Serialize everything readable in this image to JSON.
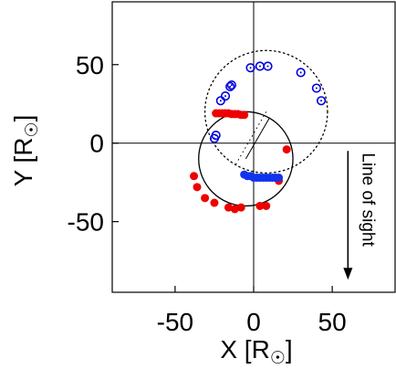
{
  "chart_data": {
    "type": "scatter",
    "title": "",
    "xlabel": "X [R",
    "ylabel": "Y [R",
    "label_suffix": "]",
    "xlim": [
      -90,
      90
    ],
    "ylim": [
      -95,
      90
    ],
    "xticks": [
      -50,
      0,
      50
    ],
    "xtick_labels": [
      "-50",
      "0",
      "50"
    ],
    "yticks": [
      -50,
      0,
      50
    ],
    "ytick_labels": [
      "-50",
      "0",
      "50"
    ],
    "grid": false,
    "zero_lines": true,
    "annotation": {
      "text": "Line of sight",
      "arrow_x": 60,
      "arrow_y_from": -5,
      "arrow_y_to": -87
    },
    "orbits": [
      {
        "name": "",
        "style": "solid",
        "color": "#000000",
        "center": [
          -5,
          -10
        ],
        "radius": 30
      },
      {
        "name": "",
        "style": "dotted",
        "color": "#000000",
        "center": [
          8,
          20
        ],
        "radius": 39
      }
    ],
    "series": [
      {
        "name": "",
        "marker": "filled-circle",
        "color": "#ee0000",
        "points": [
          [
            -24,
            19
          ],
          [
            -22,
            19
          ],
          [
            -20,
            19
          ],
          [
            -18,
            19
          ],
          [
            -16,
            19
          ],
          [
            -14,
            18.5
          ],
          [
            -12,
            18.5
          ],
          [
            -10,
            18.5
          ],
          [
            -8,
            18
          ],
          [
            -6,
            18
          ],
          [
            21,
            -4
          ],
          [
            16,
            -24
          ],
          [
            -38,
            -21
          ],
          [
            -36,
            -28
          ],
          [
            -31,
            -35
          ],
          [
            -25,
            -38
          ],
          [
            -16,
            -41
          ],
          [
            -12,
            -42
          ],
          [
            -8,
            -41
          ],
          [
            4,
            -40
          ],
          [
            8,
            -40
          ]
        ]
      },
      {
        "name": "",
        "marker": "open-circle-dot",
        "color": "#0000dd",
        "points": [
          [
            -25,
            3
          ],
          [
            -24,
            5
          ],
          [
            -21,
            27
          ],
          [
            -18,
            30
          ],
          [
            -15,
            36
          ],
          [
            -14,
            37
          ],
          [
            -2,
            48
          ],
          [
            4,
            49
          ],
          [
            30,
            45
          ],
          [
            40,
            35
          ],
          [
            43,
            27
          ],
          [
            9,
            49
          ]
        ]
      },
      {
        "name": "",
        "marker": "filled-circle",
        "color": "#1133ee",
        "points": [
          [
            -6,
            -20
          ],
          [
            -4,
            -21
          ],
          [
            -2,
            -21
          ],
          [
            0,
            -22
          ],
          [
            2,
            -22
          ],
          [
            4,
            -22
          ],
          [
            6,
            -22
          ],
          [
            8,
            -22
          ],
          [
            10,
            -22
          ],
          [
            12,
            -22
          ],
          [
            14,
            -22
          ],
          [
            16,
            -22
          ]
        ]
      }
    ]
  }
}
